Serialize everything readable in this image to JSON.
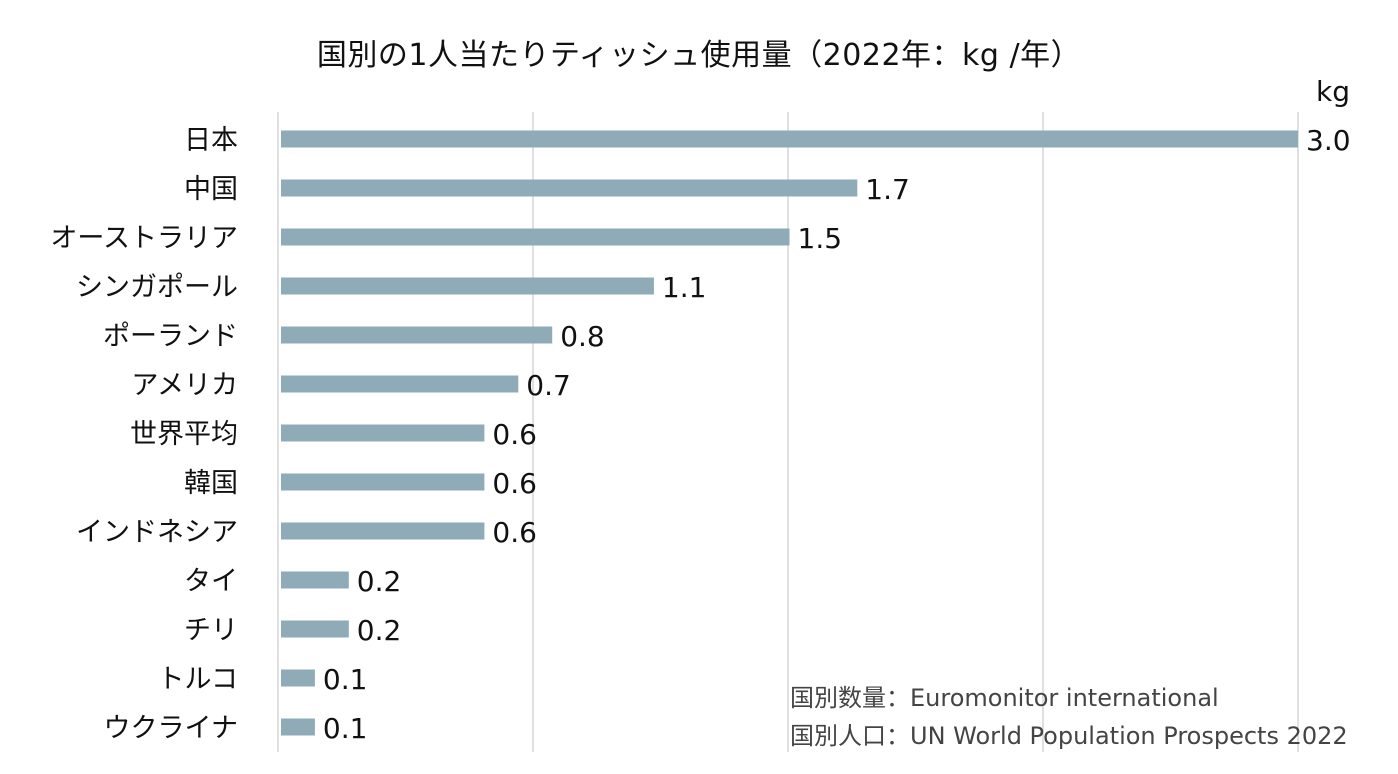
{
  "chart_data": {
    "type": "bar",
    "orientation": "horizontal",
    "title": "国別の1人当たりティッシュ使用量（2022年：kg /年）",
    "unit_label": "kg",
    "categories": [
      "日本",
      "中国",
      "オーストラリア",
      "シンガポール",
      "ポーランド",
      "アメリカ",
      "世界平均",
      "韓国",
      "インドネシア",
      "タイ",
      "チリ",
      "トルコ",
      "ウクライナ"
    ],
    "values": [
      3.0,
      1.7,
      1.5,
      1.1,
      0.8,
      0.7,
      0.6,
      0.6,
      0.6,
      0.2,
      0.2,
      0.1,
      0.1
    ],
    "value_labels": [
      "3.0",
      "1.7",
      "1.5",
      "1.1",
      "0.8",
      "0.7",
      "0.6",
      "0.6",
      "0.6",
      "0.2",
      "0.2",
      "0.1",
      "0.1"
    ],
    "xlim": [
      0,
      3.0
    ],
    "grid": true,
    "bar_color": "#8eabb7",
    "grid_color": "#d6d6d6"
  },
  "sources": [
    "国別数量：Euromonitor international",
    "国別人口：UN World Population Prospects 2022"
  ]
}
